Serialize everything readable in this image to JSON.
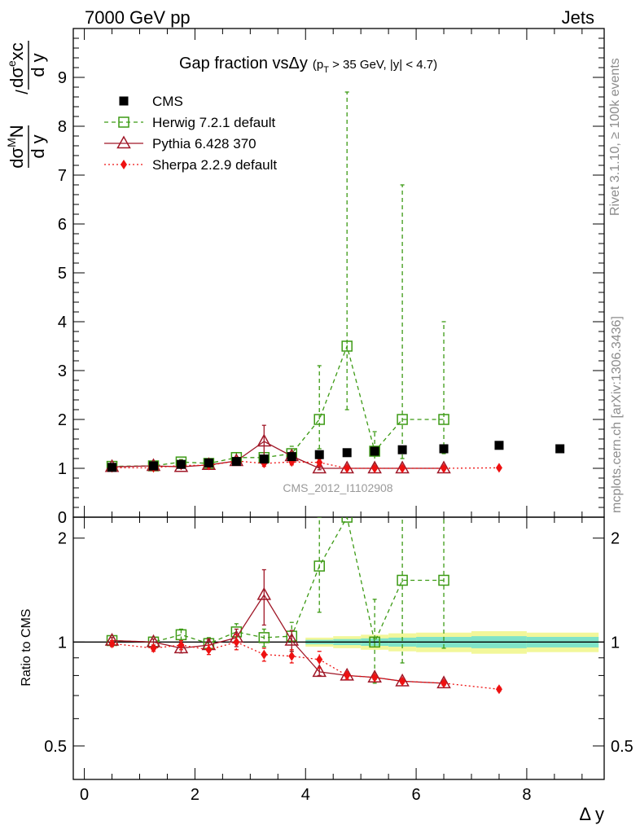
{
  "header": {
    "left": "7000 GeV pp",
    "right": "Jets"
  },
  "side_text": {
    "rivet": "Rivet 3.1.10, ≥ 100k events",
    "mcplots": "mcplots.cern.ch [arXiv:1306.3436]"
  },
  "watermark": "CMS_2012_I1102908",
  "colors": {
    "cms": "#000000",
    "herwig": "#3c9a14",
    "pythia": "#a01828",
    "sherpa": "#ee1111",
    "band_inner": "#7fe3c8",
    "band_outer": "#f2f79a"
  },
  "chart_data": [
    {
      "type": "scatter",
      "panel": "main",
      "title_main": "Gap fraction vs",
      "title_sym": "Δy",
      "title_sub": "(p",
      "title_sub_index": "T",
      "title_sub_rest": " > 35 GeV, |y| < 4.7)",
      "ylabel": "dσ^M N/dy / dσ^e xc/dy",
      "ylim": [
        0,
        10
      ],
      "xlim": [
        -0.2,
        9.4
      ],
      "grid": false,
      "legend_position": "top-left",
      "x_ticks": [
        0,
        2,
        4,
        6,
        8
      ],
      "y_ticks": [
        0,
        1,
        2,
        3,
        4,
        5,
        6,
        7,
        8,
        9
      ],
      "series": [
        {
          "key": "cms",
          "name": "CMS",
          "marker": "filled-square",
          "x": [
            0.5,
            1.25,
            1.75,
            2.25,
            2.75,
            3.25,
            3.75,
            4.25,
            4.75,
            5.25,
            5.75,
            6.5,
            7.5,
            8.6
          ],
          "y": [
            1.02,
            1.05,
            1.08,
            1.11,
            1.14,
            1.19,
            1.24,
            1.28,
            1.32,
            1.35,
            1.38,
            1.4,
            1.47,
            1.4
          ]
        },
        {
          "key": "herwig",
          "name": "Herwig 7.2.1 default",
          "marker": "open-square",
          "line": "dashed",
          "x": [
            0.5,
            1.25,
            1.75,
            2.25,
            2.75,
            3.25,
            3.75,
            4.25,
            4.75,
            5.25,
            5.75,
            6.5
          ],
          "y": [
            1.04,
            1.05,
            1.13,
            1.1,
            1.22,
            1.22,
            1.3,
            2.0,
            3.5,
            1.35,
            2.0,
            2.0
          ],
          "err_lo": [
            0.04,
            0.03,
            0.05,
            0.06,
            0.1,
            0.1,
            0.15,
            0.6,
            1.3,
            0.3,
            0.8,
            0.7
          ],
          "err_hi": [
            0.04,
            0.03,
            0.05,
            0.06,
            0.1,
            0.1,
            0.15,
            1.1,
            5.2,
            0.4,
            4.8,
            2.0
          ]
        },
        {
          "key": "pythia",
          "name": "Pythia 6.428 370",
          "marker": "open-triangle",
          "line": "solid",
          "x": [
            0.5,
            1.25,
            1.75,
            2.25,
            2.75,
            3.25,
            3.75,
            4.25,
            4.75,
            5.25,
            5.75,
            6.5
          ],
          "y": [
            1.03,
            1.05,
            1.03,
            1.07,
            1.15,
            1.55,
            1.25,
            1.0,
            1.0,
            1.0,
            1.0,
            1.0
          ],
          "err_lo": [
            0.02,
            0.02,
            0.03,
            0.05,
            0.08,
            0.33,
            0.08,
            0.03,
            0.02,
            0.02,
            0.02,
            0.02
          ],
          "err_hi": [
            0.02,
            0.02,
            0.03,
            0.05,
            0.08,
            0.33,
            0.08,
            0.03,
            0.02,
            0.02,
            0.02,
            0.02
          ]
        },
        {
          "key": "sherpa",
          "name": "Sherpa 2.2.9 default",
          "marker": "filled-diamond",
          "line": "dotted",
          "x": [
            0.5,
            1.25,
            1.75,
            2.25,
            2.75,
            3.25,
            3.75,
            4.25,
            4.75,
            5.25,
            5.75,
            6.5,
            7.5
          ],
          "y": [
            1.01,
            1.01,
            1.06,
            1.06,
            1.15,
            1.1,
            1.13,
            1.12,
            1.0,
            1.0,
            1.0,
            1.0,
            1.01
          ],
          "err_lo": [
            0.02,
            0.02,
            0.03,
            0.04,
            0.06,
            0.06,
            0.06,
            0.07,
            0.03,
            0.02,
            0.02,
            0.02,
            0.02
          ],
          "err_hi": [
            0.02,
            0.02,
            0.03,
            0.04,
            0.06,
            0.06,
            0.06,
            0.07,
            0.03,
            0.02,
            0.02,
            0.02,
            0.02
          ]
        }
      ]
    },
    {
      "type": "line",
      "panel": "ratio",
      "ylabel": "Ratio to CMS",
      "xlabel": "Δ y",
      "ylim": [
        0.4,
        2.3
      ],
      "xlim": [
        -0.2,
        9.4
      ],
      "x_ticks": [
        0,
        2,
        4,
        6,
        8
      ],
      "y_ticks": [
        0.5,
        1,
        2
      ],
      "y_tick_labels": [
        "0.5",
        "1",
        "2"
      ],
      "cms_band": {
        "x_edges": [
          4.0,
          4.5,
          5.0,
          5.5,
          6.0,
          7.0,
          8.0,
          9.3
        ],
        "inner": [
          0.015,
          0.02,
          0.025,
          0.03,
          0.035,
          0.04,
          0.035
        ],
        "outer": [
          0.03,
          0.04,
          0.05,
          0.06,
          0.065,
          0.075,
          0.065
        ]
      },
      "series": [
        {
          "key": "herwig",
          "x": [
            0.5,
            1.25,
            1.75,
            2.25,
            2.75,
            3.25,
            3.75,
            4.25,
            4.75,
            5.25,
            5.75,
            6.5
          ],
          "y": [
            1.01,
            1.0,
            1.05,
            0.99,
            1.07,
            1.03,
            1.04,
            1.66,
            2.3,
            1.0,
            1.51,
            1.51
          ],
          "err_lo": [
            0.02,
            0.02,
            0.04,
            0.04,
            0.06,
            0.06,
            0.1,
            0.44,
            0.0,
            0.24,
            0.64,
            0.55
          ],
          "err_hi": [
            0.02,
            0.02,
            0.04,
            0.04,
            0.06,
            0.06,
            0.1,
            0.64,
            0.0,
            0.33,
            0.8,
            0.8
          ]
        },
        {
          "key": "pythia",
          "x": [
            0.5,
            1.25,
            1.75,
            2.25,
            2.75,
            3.25,
            3.75,
            4.25,
            4.75,
            5.25,
            5.75,
            6.5
          ],
          "y": [
            1.01,
            1.0,
            0.96,
            0.98,
            1.03,
            1.37,
            1.01,
            0.82,
            0.8,
            0.79,
            0.77,
            0.76
          ],
          "err_lo": [
            0.02,
            0.02,
            0.03,
            0.04,
            0.06,
            0.25,
            0.07,
            0.02,
            0.02,
            0.01,
            0.01,
            0.01
          ],
          "err_hi": [
            0.02,
            0.02,
            0.03,
            0.04,
            0.06,
            0.25,
            0.07,
            0.02,
            0.02,
            0.01,
            0.01,
            0.01
          ]
        },
        {
          "key": "sherpa",
          "x": [
            0.5,
            1.25,
            1.75,
            2.25,
            2.75,
            3.25,
            3.75,
            4.25,
            4.75,
            5.25,
            5.75,
            6.5,
            7.5
          ],
          "y": [
            0.99,
            0.96,
            0.98,
            0.95,
            1.0,
            0.92,
            0.91,
            0.89,
            0.8,
            0.79,
            0.77,
            0.76,
            0.73
          ],
          "err_lo": [
            0.02,
            0.02,
            0.03,
            0.03,
            0.05,
            0.04,
            0.04,
            0.05,
            0.02,
            0.01,
            0.01,
            0.01,
            0.01
          ],
          "err_hi": [
            0.02,
            0.02,
            0.03,
            0.03,
            0.05,
            0.04,
            0.04,
            0.05,
            0.02,
            0.01,
            0.01,
            0.01,
            0.01
          ]
        }
      ]
    }
  ]
}
